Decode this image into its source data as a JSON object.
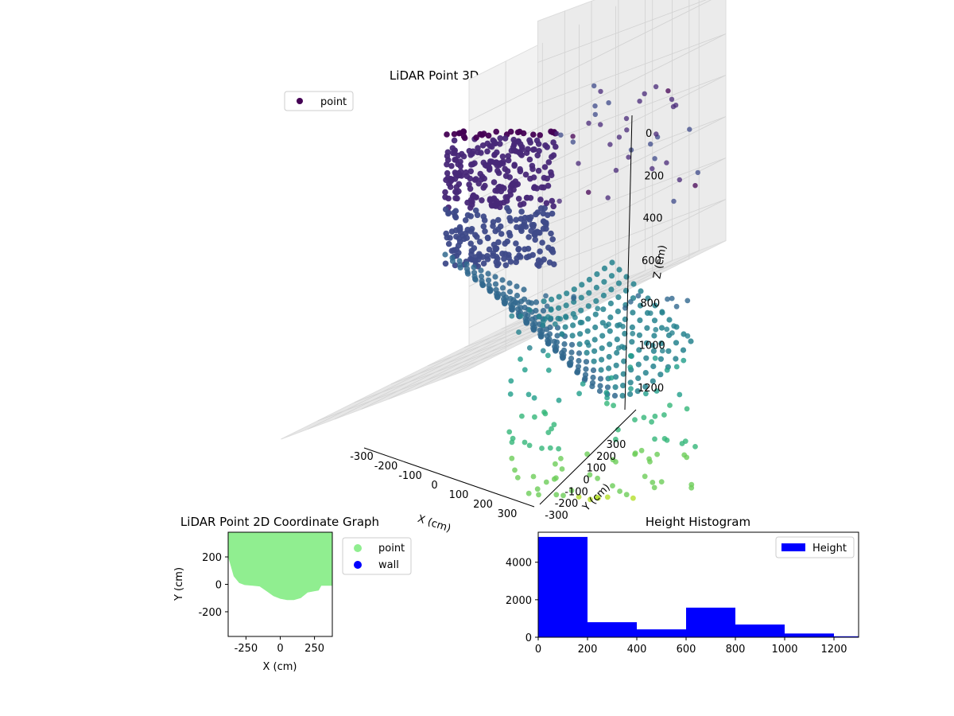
{
  "chart_data": [
    {
      "type": "scatter3d",
      "title": "LiDAR Point 3D Coordinate Graph",
      "xlabel": "X (cm)",
      "ylabel": "Y (cm)",
      "zlabel": "Z (cm)",
      "z_inverted": true,
      "xticks": [
        -300,
        -200,
        -100,
        0,
        100,
        200,
        300
      ],
      "yticks": [
        -300,
        -200,
        -100,
        0,
        100,
        200,
        300
      ],
      "zticks": [
        0,
        200,
        400,
        600,
        800,
        1000,
        1200
      ],
      "legend": {
        "entries": [
          "point"
        ],
        "placement": "upper-left"
      },
      "colormap": "viridis",
      "series": [
        {
          "name": "point"
        }
      ]
    },
    {
      "type": "scatter",
      "title": "LiDAR Point 2D Coordinate Graph",
      "xlabel": "X (cm)",
      "ylabel": "Y (cm)",
      "xlim": [
        -380,
        380
      ],
      "ylim": [
        -380,
        380
      ],
      "xticks": [
        -250,
        0,
        250
      ],
      "yticks": [
        -200,
        0,
        200
      ],
      "legend": {
        "entries": [
          "point",
          "wall"
        ],
        "placement": "outside-right"
      },
      "series": [
        {
          "name": "point",
          "color": "#90ee90"
        },
        {
          "name": "wall",
          "color": "#0000ff"
        }
      ],
      "point_region_lower_edge": [
        [
          -380,
          200
        ],
        [
          -340,
          60
        ],
        [
          -300,
          10
        ],
        [
          -260,
          -5
        ],
        [
          -200,
          -10
        ],
        [
          -150,
          -15
        ],
        [
          -100,
          -50
        ],
        [
          -50,
          -85
        ],
        [
          0,
          -105
        ],
        [
          50,
          -115
        ],
        [
          100,
          -115
        ],
        [
          150,
          -100
        ],
        [
          200,
          -60
        ],
        [
          250,
          -50
        ],
        [
          280,
          -45
        ],
        [
          300,
          -10
        ],
        [
          380,
          -10
        ]
      ]
    },
    {
      "type": "bar",
      "title": "Height Histogram",
      "xlim": [
        0,
        1300
      ],
      "ylim": [
        0,
        5600
      ],
      "xticks": [
        0,
        200,
        400,
        600,
        800,
        1000,
        1200
      ],
      "yticks": [
        0,
        2000,
        4000
      ],
      "legend": {
        "entries": [
          "Height"
        ],
        "placement": "top-right"
      },
      "series": [
        {
          "name": "Height",
          "color": "#0000ff",
          "bin_edges": [
            0,
            200,
            400,
            600,
            800,
            1000,
            1200,
            1300
          ],
          "values": [
            5350,
            800,
            420,
            1580,
            680,
            200,
            50
          ]
        }
      ]
    }
  ]
}
